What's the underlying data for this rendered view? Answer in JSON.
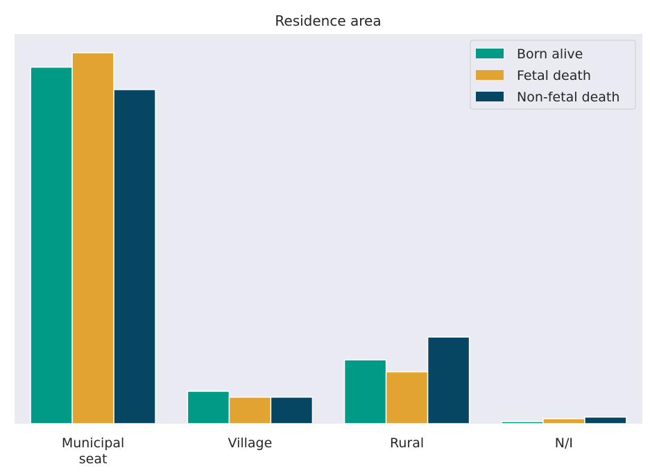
{
  "chart_data": {
    "type": "bar",
    "title": "Residence area",
    "xlabel": "",
    "ylabel": "",
    "categories": [
      "Municipal\nseat",
      "Village",
      "Rural",
      "N/I"
    ],
    "series": [
      {
        "name": "Born alive",
        "color": "#009a86",
        "values": [
          0.86,
          0.078,
          0.154,
          0.005
        ]
      },
      {
        "name": "Fetal death",
        "color": "#e2a430",
        "values": [
          0.895,
          0.064,
          0.125,
          0.012
        ]
      },
      {
        "name": "Non-fetal death",
        "color": "#064662",
        "values": [
          0.806,
          0.064,
          0.209,
          0.016
        ]
      }
    ],
    "ylim": [
      0,
      0.94
    ],
    "grid": false,
    "legend": "top-right",
    "background": "#eaeaf2"
  }
}
